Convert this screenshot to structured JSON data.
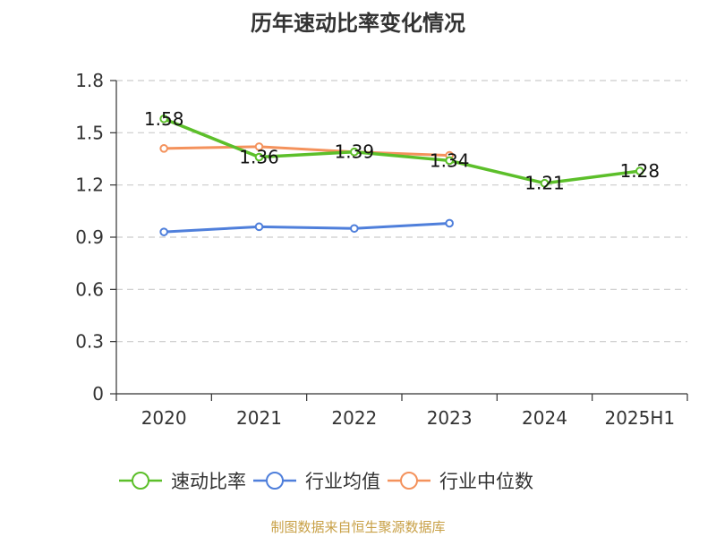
{
  "chart_data": {
    "type": "line",
    "title": "历年速动比率变化情况",
    "categories": [
      "2020",
      "2021",
      "2022",
      "2023",
      "2024",
      "2025H1"
    ],
    "y_ticks": [
      "0",
      "0.3",
      "0.6",
      "0.9",
      "1.2",
      "1.5",
      "1.8"
    ],
    "ylim": [
      0,
      1.8
    ],
    "grid": "horizontal dashed",
    "legend_position": "bottom",
    "series": [
      {
        "name": "速动比率",
        "color": "#5cbf2a",
        "values": [
          1.58,
          1.36,
          1.39,
          1.34,
          1.21,
          1.28
        ],
        "labels": [
          "1.58",
          "1.36",
          "1.39",
          "1.34",
          "1.21",
          "1.28"
        ]
      },
      {
        "name": "行业均值",
        "color": "#4f7fdb",
        "values": [
          0.93,
          0.96,
          0.95,
          0.98,
          null,
          null
        ]
      },
      {
        "name": "行业中位数",
        "color": "#f4925c",
        "values": [
          1.41,
          1.42,
          1.39,
          1.37,
          null,
          null
        ]
      }
    ]
  },
  "footer": {
    "source": "制图数据来自恒生聚源数据库"
  }
}
